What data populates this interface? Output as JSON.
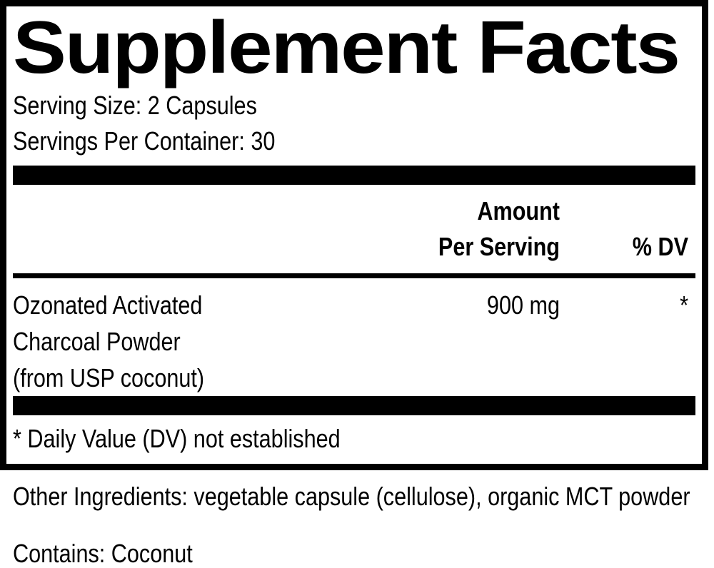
{
  "colors": {
    "ink": "#000000",
    "paper": "#ffffff"
  },
  "supplement_facts": {
    "title": "Supplement Facts",
    "serving_size": "Serving Size: 2 Capsules",
    "servings_per_container": "Servings Per Container: 30",
    "header": {
      "amount_line1": "Amount",
      "amount_line2": "Per Serving",
      "daily_value": "% DV"
    },
    "ingredients": [
      {
        "name_lines": [
          "Ozonated Activated",
          "Charcoal Powder",
          "(from USP coconut)"
        ],
        "amount": "900 mg",
        "daily_value": "*"
      }
    ],
    "footnote": "* Daily Value (DV) not established"
  },
  "additional_info": {
    "other_ingredients": "Other Ingredients: vegetable capsule (cellulose), organic MCT powder",
    "contains": "Contains: Coconut"
  }
}
